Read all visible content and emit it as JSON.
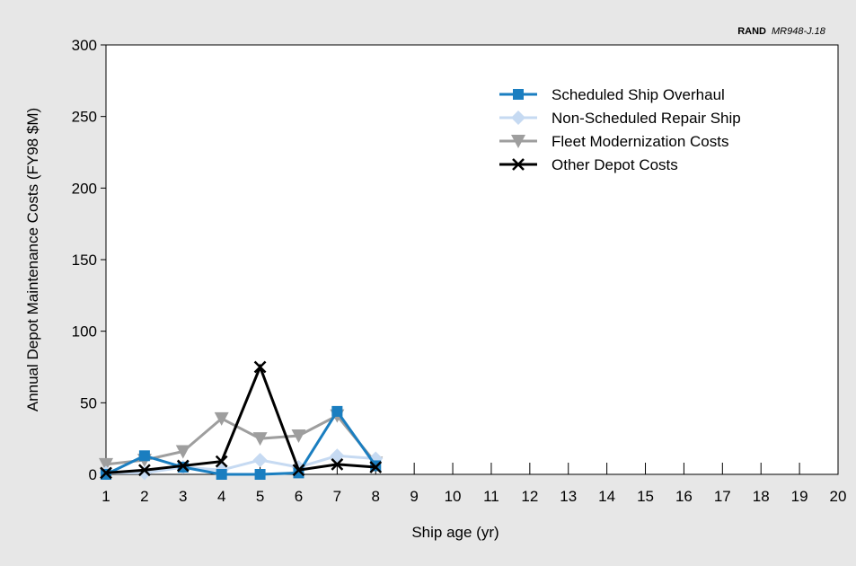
{
  "credit": {
    "org": "RAND",
    "code": "MR948-J.18"
  },
  "chart_data": {
    "type": "line",
    "xlabel": "Ship age (yr)",
    "ylabel": "Annual Depot Maintenance Costs (FY98 $M)",
    "xlim": [
      1,
      20
    ],
    "ylim": [
      0,
      300
    ],
    "x_ticks": [
      "1",
      "2",
      "3",
      "4",
      "5",
      "6",
      "7",
      "8",
      "9",
      "10",
      "11",
      "12",
      "13",
      "14",
      "15",
      "16",
      "17",
      "18",
      "19",
      "20"
    ],
    "y_ticks": [
      "0",
      "50",
      "100",
      "150",
      "200",
      "250",
      "300"
    ],
    "grid": false,
    "legend_position": "top-right",
    "series": [
      {
        "name": "Scheduled Ship Overhaul",
        "color": "#1a7ec0",
        "marker": "square",
        "x": [
          1,
          2,
          3,
          4,
          5,
          6,
          7,
          8
        ],
        "y": [
          0,
          13,
          5,
          0,
          0,
          1,
          44,
          6
        ]
      },
      {
        "name": "Non-Scheduled Repair Ship",
        "color": "#c6daf2",
        "marker": "diamond",
        "x": [
          1,
          2,
          3,
          4,
          5,
          6,
          7,
          8
        ],
        "y": [
          1,
          1,
          5,
          3,
          10,
          5,
          13,
          11
        ]
      },
      {
        "name": "Fleet Modernization Costs",
        "color": "#9e9e9e",
        "marker": "triangle-down",
        "x": [
          1,
          2,
          3,
          4,
          5,
          6,
          7,
          8
        ],
        "y": [
          7,
          10,
          16,
          39,
          25,
          27,
          41,
          8
        ]
      },
      {
        "name": "Other Depot Costs",
        "color": "#000000",
        "marker": "x",
        "x": [
          1,
          2,
          3,
          4,
          5,
          6,
          7,
          8
        ],
        "y": [
          1,
          3,
          6,
          9,
          75,
          3,
          7,
          5
        ]
      }
    ]
  }
}
